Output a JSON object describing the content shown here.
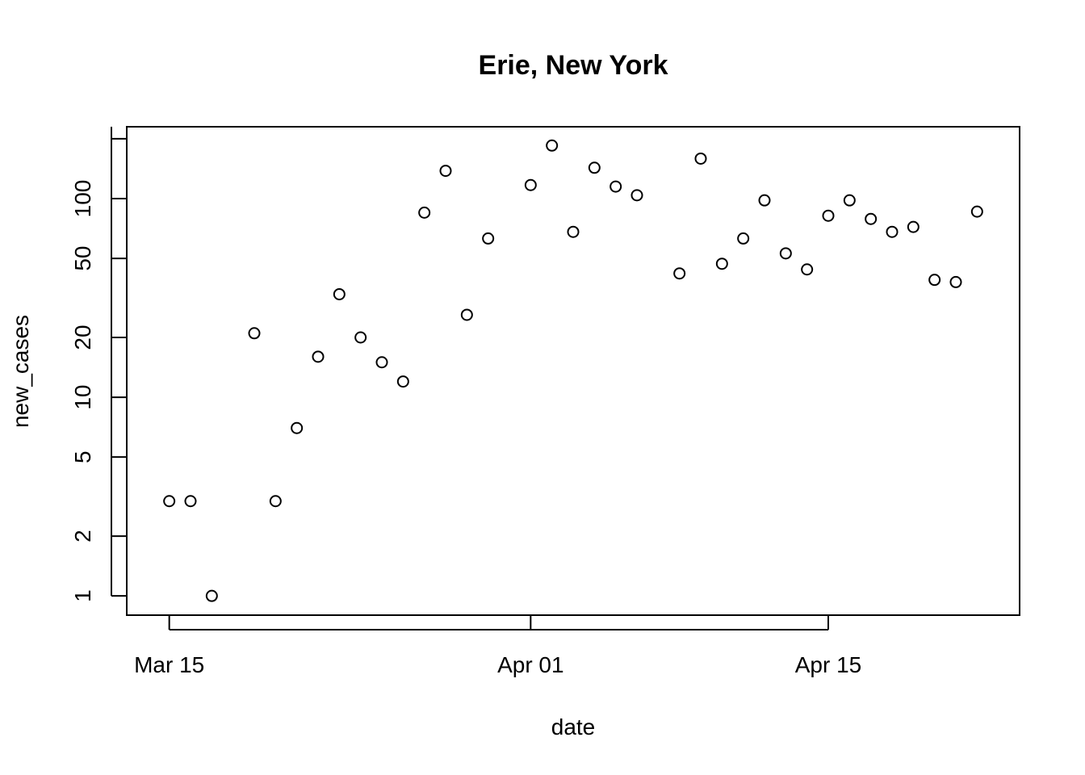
{
  "chart_data": {
    "type": "scatter",
    "title": "Erie, New York",
    "xlabel": "date",
    "ylabel": "new_cases",
    "y_scale": "log",
    "x_ticks": [
      "Mar 15",
      "Apr 01",
      "Apr 15"
    ],
    "x_tick_dates": [
      "2020-03-15",
      "2020-04-01",
      "2020-04-15"
    ],
    "y_ticks": [
      "1",
      "2",
      "5",
      "10",
      "20",
      "50",
      "100"
    ],
    "y_tick_values": [
      1,
      2,
      5,
      10,
      20,
      50,
      100
    ],
    "xlim": [
      "2020-03-13",
      "2020-04-24"
    ],
    "ylim": [
      0.8,
      230
    ],
    "grid": false,
    "x": [
      "2020-03-15",
      "2020-03-16",
      "2020-03-17",
      "2020-03-19",
      "2020-03-20",
      "2020-03-21",
      "2020-03-22",
      "2020-03-23",
      "2020-03-24",
      "2020-03-25",
      "2020-03-26",
      "2020-03-27",
      "2020-03-28",
      "2020-03-29",
      "2020-03-30",
      "2020-04-01",
      "2020-04-02",
      "2020-04-03",
      "2020-04-04",
      "2020-04-05",
      "2020-04-06",
      "2020-04-08",
      "2020-04-09",
      "2020-04-10",
      "2020-04-11",
      "2020-04-12",
      "2020-04-13",
      "2020-04-14",
      "2020-04-15",
      "2020-04-16",
      "2020-04-17",
      "2020-04-18",
      "2020-04-19",
      "2020-04-20",
      "2020-04-21",
      "2020-04-22"
    ],
    "y": [
      3,
      3,
      1,
      21,
      3,
      7,
      16,
      33,
      20,
      15,
      12,
      85,
      138,
      26,
      63,
      117,
      185,
      68,
      143,
      115,
      104,
      42,
      159,
      47,
      63,
      98,
      53,
      44,
      82,
      98,
      79,
      68,
      72,
      39,
      38,
      86
    ]
  }
}
